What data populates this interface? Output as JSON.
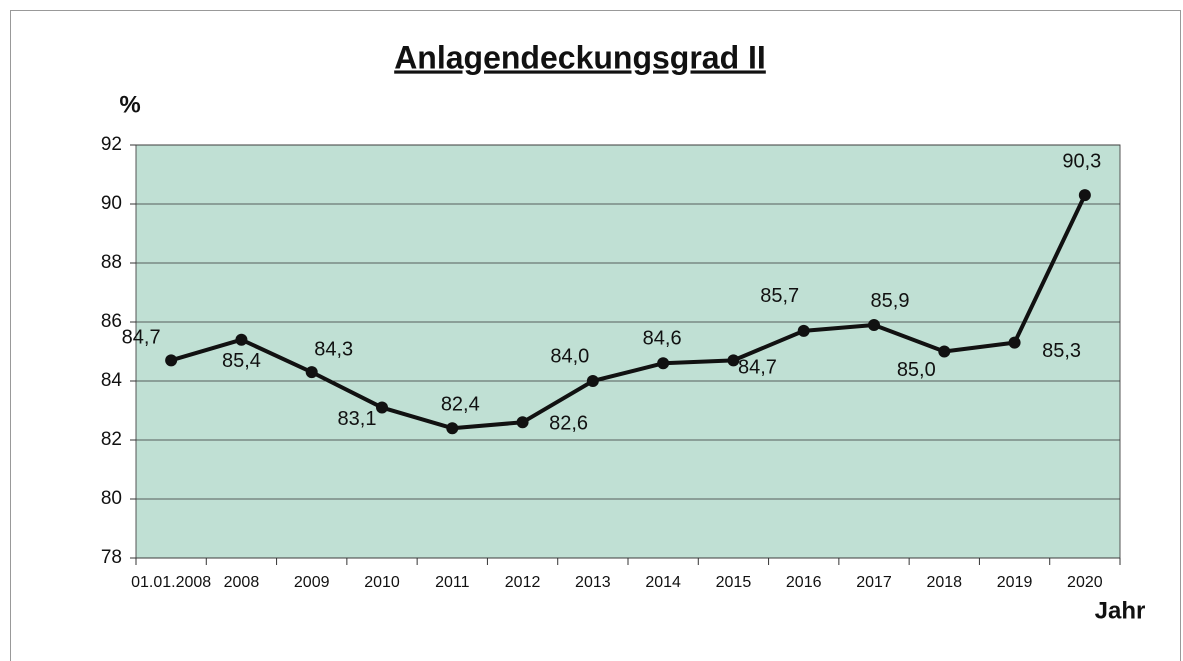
{
  "chart_data": {
    "type": "line",
    "title": "Anlagendeckungsgrad II",
    "y_label": "%",
    "x_label": "Jahr",
    "categories": [
      "01.01.2008",
      "2008",
      "2009",
      "2010",
      "2011",
      "2012",
      "2013",
      "2014",
      "2015",
      "2016",
      "2017",
      "2018",
      "2019",
      "2020"
    ],
    "series": [
      {
        "name": "Anlagendeckungsgrad II",
        "color": "#111111",
        "values": [
          84.7,
          85.4,
          84.3,
          83.1,
          82.4,
          82.6,
          84.0,
          84.6,
          84.7,
          85.7,
          85.9,
          85.0,
          85.3,
          90.3
        ],
        "value_labels": [
          "84,7",
          "85,4",
          "84,3",
          "83,1",
          "82,4",
          "82,6",
          "84,0",
          "84,6",
          "84,7",
          "85,7",
          "85,9",
          "85,0",
          "85,3",
          "90,3"
        ]
      }
    ],
    "ylim": [
      78,
      92
    ],
    "yticks": [
      78,
      80,
      82,
      84,
      86,
      88,
      90,
      92
    ],
    "grid": true,
    "plot_background": "#c0e0d4"
  }
}
